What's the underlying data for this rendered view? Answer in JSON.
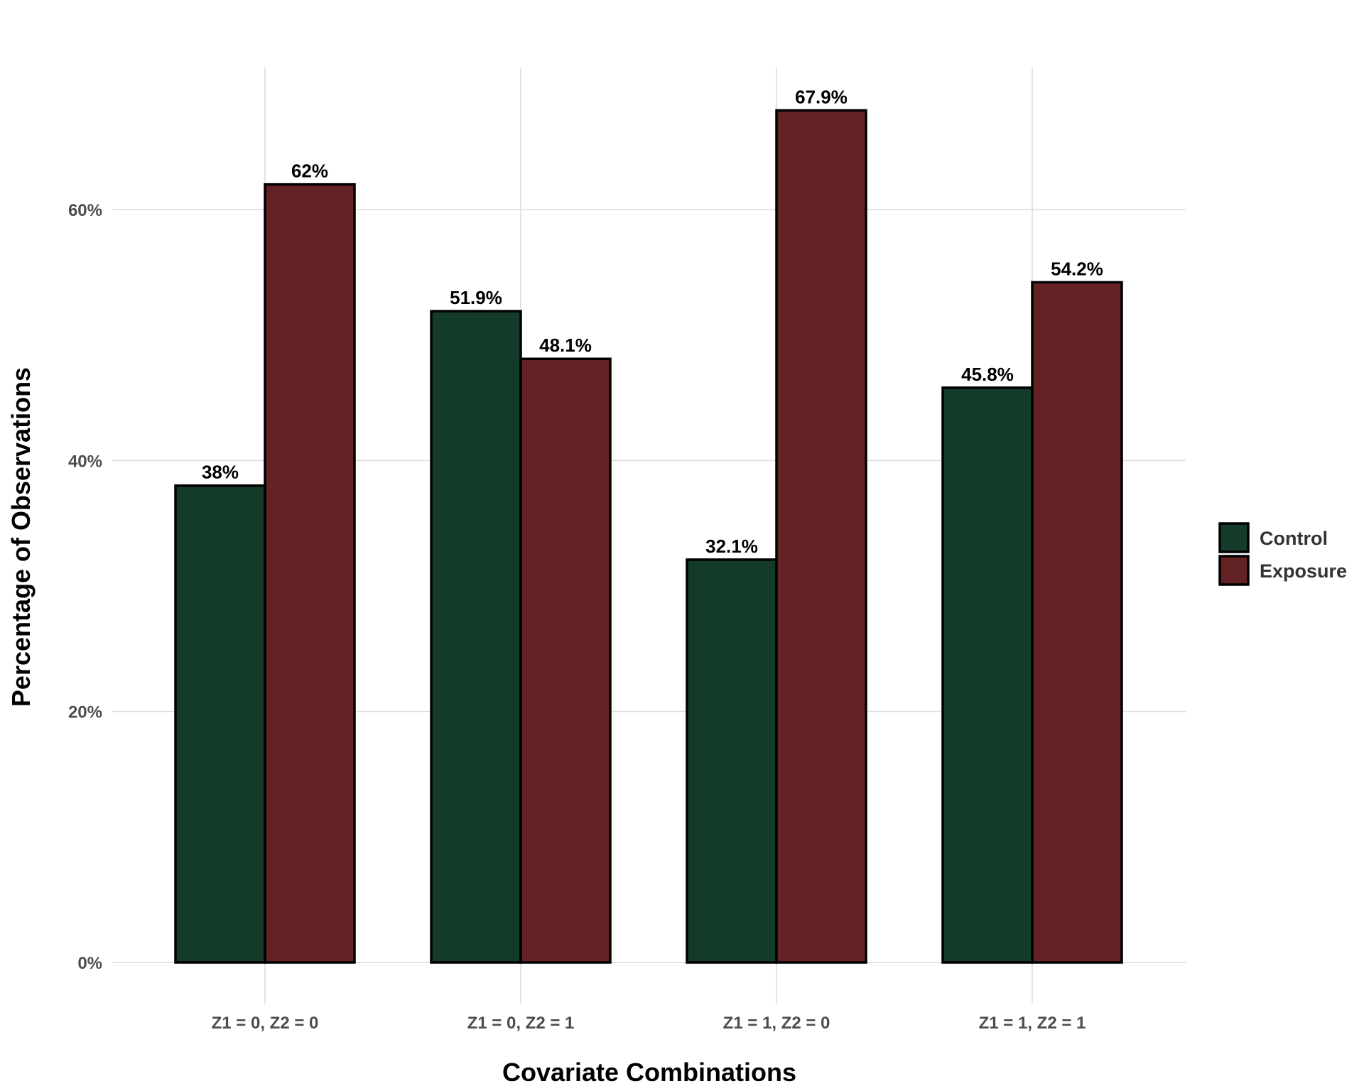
{
  "chart_data": {
    "type": "bar",
    "title": "",
    "xlabel": "Covariate Combinations",
    "ylabel": "Percentage of Observations",
    "categories": [
      "Z1 = 0, Z2 = 0",
      "Z1 = 0, Z2 = 1",
      "Z1 = 1, Z2 = 0",
      "Z1 = 1, Z2 = 1"
    ],
    "series": [
      {
        "name": "Control",
        "color": "#143a29",
        "values": [
          38.0,
          51.9,
          32.1,
          45.8
        ],
        "labels": [
          "38%",
          "51.9%",
          "32.1%",
          "45.8%"
        ]
      },
      {
        "name": "Exposure",
        "color": "#632223",
        "values": [
          62.0,
          48.1,
          67.9,
          54.2
        ],
        "labels": [
          "62%",
          "48.1%",
          "67.9%",
          "54.2%"
        ]
      }
    ],
    "ylim": [
      0,
      71
    ],
    "yticks": [
      0,
      20,
      40,
      60
    ],
    "ytick_labels": [
      "0%",
      "20%",
      "40%",
      "60%"
    ],
    "grid": true,
    "legend_position": "right"
  }
}
